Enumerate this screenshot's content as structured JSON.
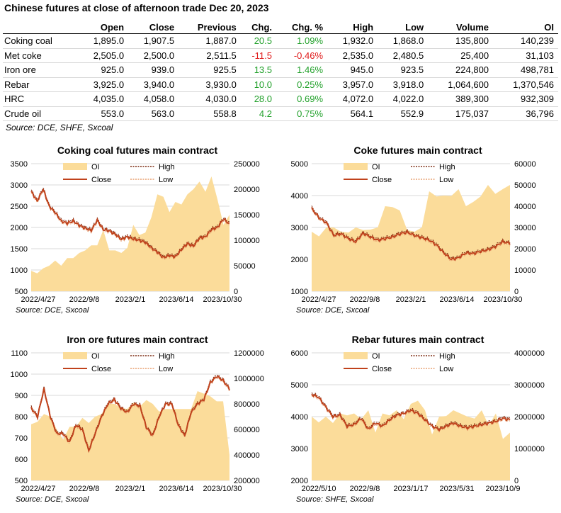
{
  "page": {
    "title": "Chinese futures at close of afternoon trade Dec 20, 2023",
    "source": "Source: DCE, SHFE, Sxcoal"
  },
  "table": {
    "headers": [
      "",
      "Open",
      "Close",
      "Previous",
      "Chg.",
      "Chg. %",
      "High",
      "Low",
      "Volume",
      "OI"
    ],
    "rows": [
      {
        "name": "Coking coal",
        "open": "1,895.0",
        "close": "1,907.5",
        "previous": "1,887.0",
        "chg": "20.5",
        "chg_pct": "1.09%",
        "high": "1,932.0",
        "low": "1,868.0",
        "volume": "135,800",
        "oi": "140,239",
        "dir": "up"
      },
      {
        "name": "Met coke",
        "open": "2,505.0",
        "close": "2,500.0",
        "previous": "2,511.5",
        "chg": "-11.5",
        "chg_pct": "-0.46%",
        "high": "2,535.0",
        "low": "2,480.5",
        "volume": "25,400",
        "oi": "31,103",
        "dir": "down"
      },
      {
        "name": "Iron ore",
        "open": "925.0",
        "close": "939.0",
        "previous": "925.5",
        "chg": "13.5",
        "chg_pct": "1.46%",
        "high": "945.0",
        "low": "923.5",
        "volume": "224,800",
        "oi": "498,781",
        "dir": "up"
      },
      {
        "name": "Rebar",
        "open": "3,925.0",
        "close": "3,940.0",
        "previous": "3,930.0",
        "chg": "10.0",
        "chg_pct": "0.25%",
        "high": "3,957.0",
        "low": "3,918.0",
        "volume": "1,064,600",
        "oi": "1,370,546",
        "dir": "up"
      },
      {
        "name": "HRC",
        "open": "4,035.0",
        "close": "4,058.0",
        "previous": "4,030.0",
        "chg": "28.0",
        "chg_pct": "0.69%",
        "high": "4,072.0",
        "low": "4,022.0",
        "volume": "389,300",
        "oi": "932,309",
        "dir": "up"
      },
      {
        "name": "Crude oil",
        "open": "553.0",
        "close": "563.0",
        "previous": "558.8",
        "chg": "4.2",
        "chg_pct": "0.75%",
        "high": "564.1",
        "low": "552.9",
        "volume": "175,037",
        "oi": "36,796",
        "dir": "up"
      }
    ]
  },
  "colors": {
    "oi": "#fbdc9a",
    "close": "#c0421c",
    "high": "#7b2a10",
    "low": "#e8a070",
    "grid": "#d9d9d9",
    "positive": "#21a02a",
    "negative": "#e01b1b"
  },
  "chart_data": [
    {
      "type": "line",
      "title": "Coking coal futures main contract",
      "source": "Source: DCE, Sxcoal",
      "legend": [
        "OI",
        "High",
        "Close",
        "Low"
      ],
      "legend_position": "top-center",
      "grid": true,
      "x_ticks": [
        "2022/4/27",
        "2022/9/8",
        "2023/2/1",
        "2023/6/14",
        "2023/10/30"
      ],
      "y_left": {
        "range": [
          500,
          3500
        ],
        "ticks": [
          500,
          1000,
          1500,
          2000,
          2500,
          3000,
          3500
        ]
      },
      "y_right": {
        "range": [
          0,
          250000
        ],
        "ticks": [
          0,
          50000,
          100000,
          150000,
          200000,
          250000
        ]
      },
      "close": [
        2850,
        2620,
        2900,
        2500,
        2350,
        2150,
        2100,
        2150,
        2050,
        1980,
        1930,
        2170,
        1950,
        1920,
        1840,
        1720,
        1780,
        1730,
        1700,
        1650,
        1520,
        1420,
        1290,
        1340,
        1310,
        1480,
        1620,
        1560,
        1750,
        1780,
        1950,
        2000,
        2200,
        2080
      ],
      "oi": [
        40000,
        40000,
        45000,
        50000,
        60000,
        60000,
        65000,
        70000,
        75000,
        80000,
        90000,
        100000,
        120000,
        85000,
        80000,
        75000,
        85000,
        140000,
        110000,
        120000,
        145000,
        190000,
        185000,
        165000,
        175000,
        175000,
        190000,
        200000,
        215000,
        205000,
        225000,
        185000,
        130000,
        150000
      ]
    },
    {
      "type": "line",
      "title": "Coke futures main contract",
      "source": "Source: DCE, Sxcoal",
      "legend": [
        "OI",
        "High",
        "Close",
        "Low"
      ],
      "legend_position": "top-center",
      "grid": true,
      "x_ticks": [
        "2022/4/27",
        "2022/9/8",
        "2023/2/1",
        "2023/6/14",
        "2023/10/30"
      ],
      "y_left": {
        "range": [
          1000,
          5000
        ],
        "ticks": [
          1000,
          2000,
          3000,
          4000,
          5000
        ]
      },
      "y_right": {
        "range": [
          0,
          60000
        ],
        "ticks": [
          0,
          10000,
          20000,
          30000,
          40000,
          50000,
          60000
        ]
      },
      "close": [
        3600,
        3300,
        3150,
        2750,
        2800,
        2650,
        2550,
        2820,
        2700,
        2600,
        2650,
        2700,
        2800,
        2850,
        2750,
        2680,
        2600,
        2450,
        2200,
        2000,
        2050,
        2200,
        2180,
        2250,
        2300,
        2400,
        2550,
        2500
      ],
      "oi": [
        28000,
        27000,
        30000,
        30000,
        28000,
        30000,
        30000,
        30000,
        29000,
        30000,
        40000,
        42000,
        38000,
        30000,
        28000,
        30000,
        47000,
        47000,
        45000,
        46000,
        48000,
        40000,
        42000,
        47000,
        50000,
        47000,
        48000,
        50000
      ]
    },
    {
      "type": "line",
      "title": "Iron ore futures main contract",
      "source": "Source: DCE, Sxcoal",
      "legend": [
        "OI",
        "High",
        "Close",
        "Low"
      ],
      "legend_position": "top-center",
      "grid": true,
      "x_ticks": [
        "2022/4/27",
        "2022/9/8",
        "2023/2/1",
        "2023/6/14",
        "2023/10/30"
      ],
      "y_left": {
        "range": [
          500,
          1100
        ],
        "ticks": [
          500,
          600,
          700,
          800,
          900,
          1000,
          1100
        ]
      },
      "y_right": {
        "range": [
          200000,
          1200000
        ],
        "ticks": [
          200000,
          400000,
          600000,
          800000,
          1000000,
          1200000
        ]
      },
      "close": [
        840,
        800,
        930,
        800,
        720,
        720,
        680,
        760,
        740,
        640,
        720,
        800,
        860,
        880,
        840,
        820,
        860,
        850,
        750,
        710,
        800,
        860,
        860,
        760,
        710,
        820,
        860,
        880,
        960,
        990,
        970,
        930
      ],
      "oi": [
        640000,
        680000,
        720000,
        700000,
        600000,
        560000,
        620000,
        640000,
        690000,
        650000,
        700000,
        760000,
        800000,
        820000,
        770000,
        760000,
        810000,
        820000,
        830000,
        820000,
        740000,
        760000,
        760000,
        800000,
        760000,
        780000,
        900000,
        880000,
        860000,
        860000,
        820000,
        420000
      ]
    },
    {
      "type": "line",
      "title": "Rebar futures main contract",
      "source": "Source: SHFE, Sxcoal",
      "legend": [
        "OI",
        "High",
        "Close",
        "Low"
      ],
      "legend_position": "top-center",
      "grid": true,
      "x_ticks": [
        "2022/5/10",
        "2022/9/8",
        "2023/1/17",
        "2023/5/31",
        "2023/10/9"
      ],
      "y_left": {
        "range": [
          2000,
          6000
        ],
        "ticks": [
          2000,
          3000,
          4000,
          5000,
          6000
        ]
      },
      "y_right": {
        "range": [
          0,
          4000000
        ],
        "ticks": [
          0,
          1000000,
          2000000,
          3000000,
          4000000
        ]
      },
      "close": [
        4700,
        4600,
        4300,
        4000,
        4050,
        3700,
        3750,
        3950,
        3600,
        3800,
        3700,
        3900,
        4050,
        4100,
        4200,
        4100,
        3900,
        3700,
        3600,
        3700,
        3800,
        3700,
        3650,
        3700,
        3750,
        3800,
        3850,
        3950,
        3900
      ],
      "oi": [
        2000000,
        1900000,
        2000000,
        1800000,
        2100000,
        2200000,
        2100000,
        2000000,
        2200000,
        1500000,
        2100000,
        2200000,
        2200000,
        2000000,
        2400000,
        2500000,
        2200000,
        1600000,
        2000000,
        2100000,
        2200000,
        2100000,
        2000000,
        2100000,
        2200000,
        1800000,
        2100000,
        1300000,
        1500000
      ]
    }
  ]
}
